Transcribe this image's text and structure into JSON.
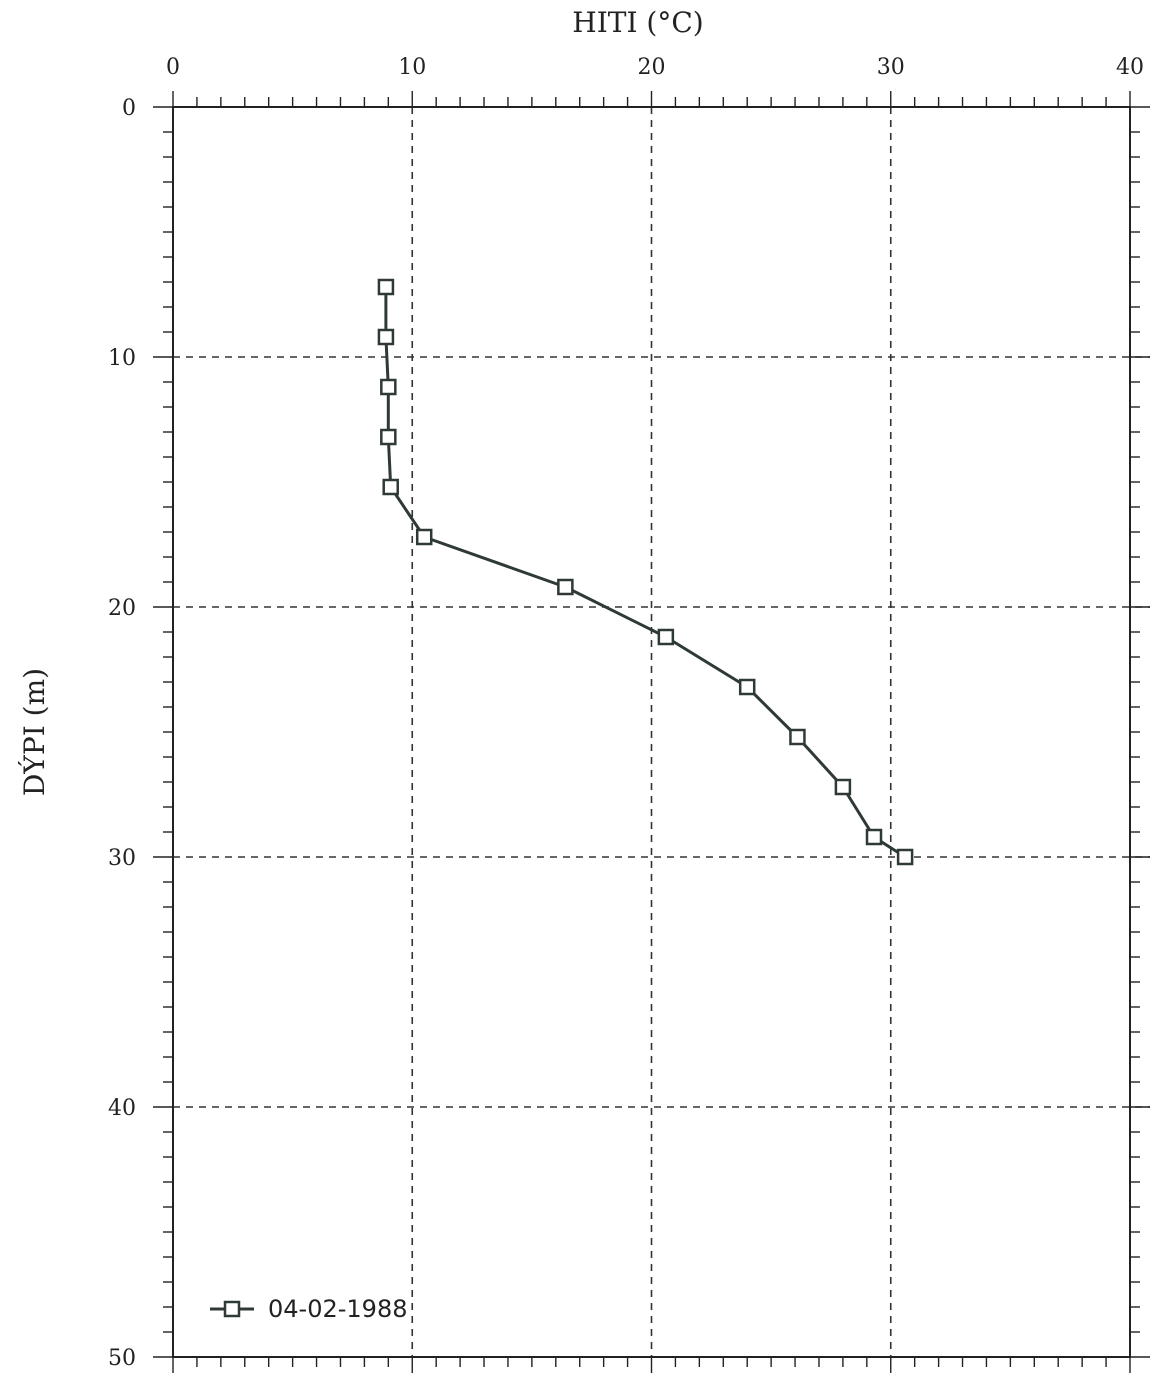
{
  "chart_data": {
    "type": "line",
    "xlabel": "HITI (°C)",
    "ylabel": "DÝPI (m)",
    "x_axis_position": "top",
    "y_axis_reversed": true,
    "xlim": [
      0,
      40
    ],
    "ylim": [
      0,
      50
    ],
    "x_ticks": [
      0,
      10,
      20,
      30,
      40
    ],
    "y_ticks": [
      0,
      10,
      20,
      30,
      40,
      50
    ],
    "x_tick_labels": [
      "0",
      "10",
      "20",
      "30",
      "40"
    ],
    "y_tick_labels": [
      "0",
      "10",
      "20",
      "30",
      "40",
      "50"
    ],
    "grid": "dashed",
    "legend_position": "bottom-left",
    "series": [
      {
        "name": "04-02-1988",
        "marker": "square",
        "color": "#2f3a34",
        "points": [
          {
            "temp": 8.9,
            "depth": 7.2
          },
          {
            "temp": 8.9,
            "depth": 9.2
          },
          {
            "temp": 9.0,
            "depth": 11.2
          },
          {
            "temp": 9.0,
            "depth": 13.2
          },
          {
            "temp": 9.1,
            "depth": 15.2
          },
          {
            "temp": 10.5,
            "depth": 17.2
          },
          {
            "temp": 16.4,
            "depth": 19.2
          },
          {
            "temp": 20.6,
            "depth": 21.2
          },
          {
            "temp": 24.0,
            "depth": 23.2
          },
          {
            "temp": 26.1,
            "depth": 25.2
          },
          {
            "temp": 28.0,
            "depth": 27.2
          },
          {
            "temp": 29.3,
            "depth": 29.2
          },
          {
            "temp": 30.6,
            "depth": 30.0
          }
        ]
      }
    ]
  }
}
